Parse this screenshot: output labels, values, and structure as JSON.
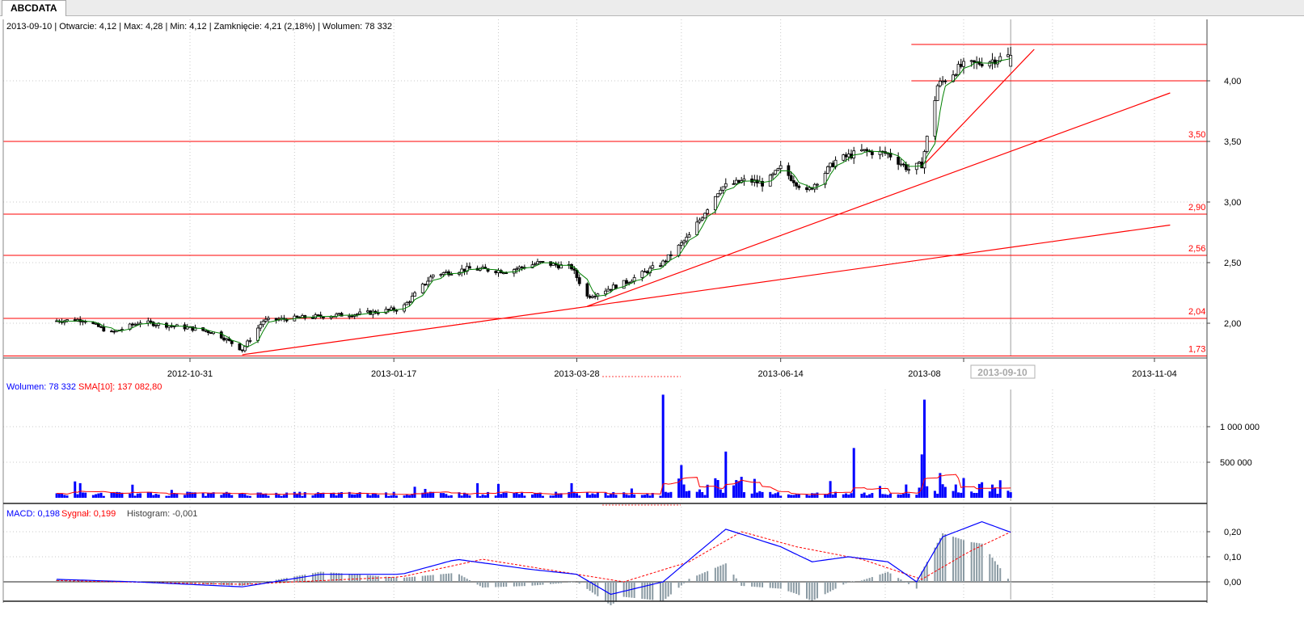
{
  "tab": {
    "label": "ABCDATA"
  },
  "info_line": "2013-09-10 | Otwarcie: 4,12 | Max: 4,28 | Min: 4,12 | Zamknięcie: 4,21 (2,18%)  | Wolumen: 78 332",
  "price_axis_labels": [
    "4,00",
    "3,50",
    "3,00",
    "2,50",
    "2,00"
  ],
  "level_labels": [
    "3,50",
    "2,90",
    "2,56",
    "2,04",
    "1,73"
  ],
  "date_labels": [
    "2012-10-31",
    "2013-01-17",
    "2013-03-28",
    "2013-06-14",
    "2013-08",
    "2013-11-04"
  ],
  "cursor_date_label": "2013-09-10",
  "volume_legend": {
    "volume": "Wolumen: 78 332",
    "sma": "SMA[10]: 137 082,80"
  },
  "volume_axis_labels": [
    "1 000 000",
    "500 000"
  ],
  "macd_legend": {
    "macd": "MACD: 0,198",
    "signal": "Sygnał: 0,199",
    "histogram": "Histogram: -0,001"
  },
  "macd_axis_labels": [
    "0,20",
    "0,10",
    "0,00"
  ],
  "colors": {
    "candle": "#000000",
    "ma_line": "#008000",
    "level_line": "#ff0000",
    "volume_bar": "#0000ff",
    "sma_line": "#ff0000",
    "macd_line": "#0000ff",
    "signal_line": "#ff0000",
    "histogram": "#8a9aa3",
    "grid": "#c8c8c8"
  },
  "chart_data": [
    {
      "type": "candlestick",
      "title": "ABCDATA",
      "x_range": [
        "2012-09-10",
        "2013-11-20"
      ],
      "y_range": [
        1.72,
        4.32
      ],
      "y_ticks": [
        2.0,
        2.5,
        3.0,
        3.5,
        4.0
      ],
      "horizontal_levels": [
        1.73,
        2.04,
        2.56,
        2.9,
        3.5,
        4.0,
        4.3
      ],
      "trend_lines": [
        {
          "from": [
            "2012-11-20",
            1.74
          ],
          "to": [
            "2013-11-10",
            2.81
          ]
        },
        {
          "from": [
            "2013-04-01",
            2.14
          ],
          "to": [
            "2013-11-10",
            3.9
          ]
        },
        {
          "from": [
            "2013-08-07",
            3.29
          ],
          "to": [
            "2013-09-19",
            4.26
          ]
        }
      ],
      "last_candle": {
        "date": "2013-09-10",
        "open": 4.12,
        "high": 4.28,
        "low": 4.12,
        "close": 4.21,
        "change_pct": 2.18
      },
      "close_path": [
        [
          "2012-09-10",
          2.02
        ],
        [
          "2012-09-20",
          2.03
        ],
        [
          "2012-10-01",
          1.92
        ],
        [
          "2012-10-12",
          2.01
        ],
        [
          "2012-10-31",
          1.96
        ],
        [
          "2012-11-10",
          1.92
        ],
        [
          "2012-11-20",
          1.78
        ],
        [
          "2012-11-28",
          2.02
        ],
        [
          "2012-12-15",
          2.05
        ],
        [
          "2013-01-05",
          2.08
        ],
        [
          "2013-01-20",
          2.12
        ],
        [
          "2013-02-01",
          2.4
        ],
        [
          "2013-02-15",
          2.45
        ],
        [
          "2013-03-01",
          2.43
        ],
        [
          "2013-03-14",
          2.5
        ],
        [
          "2013-03-26",
          2.46
        ],
        [
          "2013-04-01",
          2.22
        ],
        [
          "2013-04-16",
          2.34
        ],
        [
          "2013-04-30",
          2.5
        ],
        [
          "2013-05-10",
          2.72
        ],
        [
          "2013-05-22",
          3.12
        ],
        [
          "2013-06-01",
          3.18
        ],
        [
          "2013-06-08",
          3.15
        ],
        [
          "2013-06-14",
          3.28
        ],
        [
          "2013-06-24",
          3.08
        ],
        [
          "2013-07-05",
          3.34
        ],
        [
          "2013-07-15",
          3.42
        ],
        [
          "2013-07-25",
          3.4
        ],
        [
          "2013-08-02",
          3.27
        ],
        [
          "2013-08-07",
          3.31
        ],
        [
          "2013-08-13",
          3.96
        ],
        [
          "2013-08-22",
          4.12
        ],
        [
          "2013-09-01",
          4.16
        ],
        [
          "2013-09-10",
          4.21
        ]
      ]
    },
    {
      "type": "bar",
      "title": "Wolumen",
      "series": [
        {
          "name": "Wolumen",
          "last": 78332
        },
        {
          "name": "SMA[10]",
          "last": 137082.8
        }
      ],
      "y_ticks": [
        500000,
        1000000
      ],
      "y_range": [
        0,
        1500000
      ],
      "notable_spikes": [
        {
          "date": "2013-04-30",
          "value": 1450000
        },
        {
          "date": "2013-05-24",
          "value": 650000
        },
        {
          "date": "2013-07-12",
          "value": 700000
        },
        {
          "date": "2013-08-07",
          "value": 610000
        },
        {
          "date": "2013-08-08",
          "value": 1380000
        }
      ]
    },
    {
      "type": "line",
      "title": "MACD",
      "series": [
        {
          "name": "MACD",
          "last": 0.198
        },
        {
          "name": "Sygnał",
          "last": 0.199
        },
        {
          "name": "Histogram",
          "last": -0.001
        }
      ],
      "y_ticks": [
        0.0,
        0.1,
        0.2
      ],
      "y_range": [
        -0.05,
        0.24
      ],
      "macd_path": [
        [
          "2012-09-10",
          0.01
        ],
        [
          "2012-10-10",
          0.0
        ],
        [
          "2012-11-20",
          -0.02
        ],
        [
          "2012-12-20",
          0.03
        ],
        [
          "2013-01-20",
          0.03
        ],
        [
          "2013-02-10",
          0.09
        ],
        [
          "2013-03-10",
          0.05
        ],
        [
          "2013-03-28",
          0.03
        ],
        [
          "2013-04-10",
          -0.05
        ],
        [
          "2013-04-30",
          0.0
        ],
        [
          "2013-05-24",
          0.21
        ],
        [
          "2013-06-14",
          0.14
        ],
        [
          "2013-06-26",
          0.08
        ],
        [
          "2013-07-10",
          0.1
        ],
        [
          "2013-07-25",
          0.08
        ],
        [
          "2013-08-05",
          0.0
        ],
        [
          "2013-08-15",
          0.18
        ],
        [
          "2013-08-30",
          0.24
        ],
        [
          "2013-09-10",
          0.198
        ]
      ],
      "signal_path": [
        [
          "2012-09-10",
          0.005
        ],
        [
          "2012-11-20",
          -0.01
        ],
        [
          "2013-01-20",
          0.02
        ],
        [
          "2013-02-20",
          0.09
        ],
        [
          "2013-04-15",
          0.0
        ],
        [
          "2013-05-10",
          0.08
        ],
        [
          "2013-05-30",
          0.2
        ],
        [
          "2013-06-20",
          0.14
        ],
        [
          "2013-07-15",
          0.09
        ],
        [
          "2013-08-07",
          0.01
        ],
        [
          "2013-08-25",
          0.12
        ],
        [
          "2013-09-10",
          0.199
        ]
      ]
    }
  ]
}
